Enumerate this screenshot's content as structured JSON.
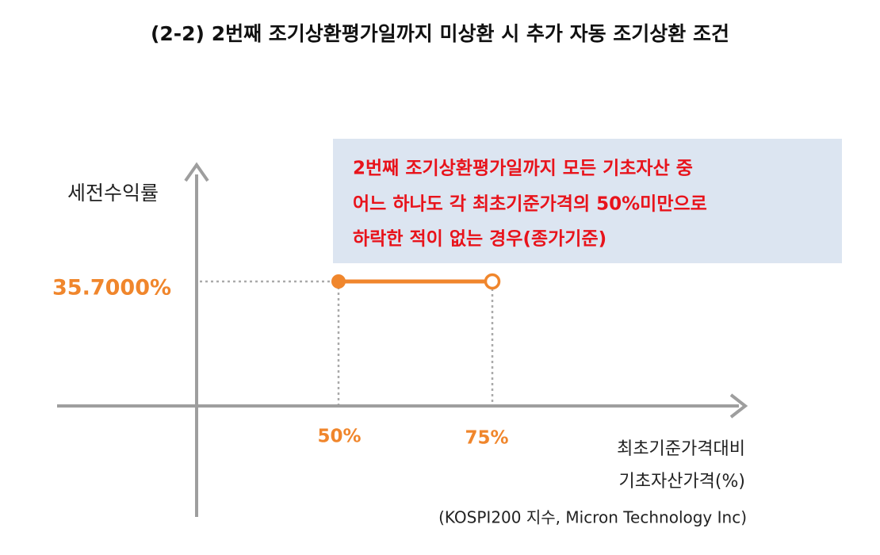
{
  "header": {
    "title": "(2-2) 2번째 조기상환평가일까지 미상환 시 추가 자동 조기상환 조건"
  },
  "y_axis": {
    "label": "세전수익률"
  },
  "payoff": {
    "label": "35.7000%"
  },
  "x_axis": {
    "ticks": [
      "50%",
      "75%"
    ],
    "label_lines": [
      "최초기준가격대비",
      "기초자산가격(%)"
    ],
    "note": "(KOSPI200 지수, Micron Technology Inc)"
  },
  "condition_box": {
    "lines": [
      "2번째 조기상환평가일까지 모든 기초자산 중",
      "어느 하나도 각 최초기준가격의 50%미만으로",
      "하락한 적이 없는 경우(종가기준)"
    ]
  }
}
